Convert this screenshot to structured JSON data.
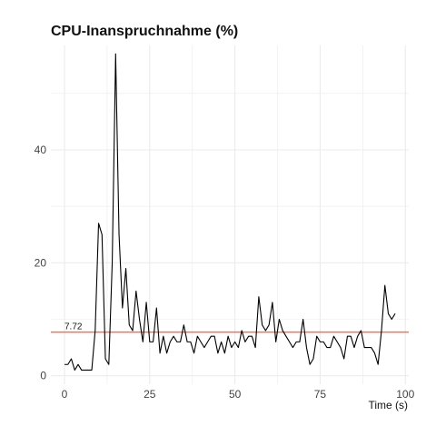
{
  "chart_data": {
    "type": "line",
    "title": "CPU-Inanspruchnahme (%)",
    "xlabel": "Time (s)",
    "ylabel": "",
    "xlim": [
      -4,
      101
    ],
    "ylim": [
      -1.5,
      58.5
    ],
    "x_ticks": [
      0,
      25,
      50,
      75,
      100
    ],
    "x_tick_labels": [
      "0",
      "25",
      "50",
      "75",
      "100"
    ],
    "y_ticks": [
      0,
      20,
      40
    ],
    "y_tick_labels": [
      "0",
      "20",
      "40"
    ],
    "grid": true,
    "legend": "none",
    "series": [
      {
        "color": "#000000",
        "x": [
          0,
          1,
          2,
          3,
          4,
          5,
          6,
          7,
          8,
          9,
          10,
          11,
          12,
          13,
          14,
          15,
          16,
          17,
          18,
          19,
          20,
          21,
          22,
          23,
          24,
          25,
          26,
          27,
          28,
          29,
          30,
          31,
          32,
          33,
          34,
          35,
          36,
          37,
          38,
          39,
          40,
          41,
          42,
          43,
          44,
          45,
          46,
          47,
          48,
          49,
          50,
          51,
          52,
          53,
          54,
          55,
          56,
          57,
          58,
          59,
          60,
          61,
          62,
          63,
          64,
          65,
          66,
          67,
          68,
          69,
          70,
          71,
          72,
          73,
          74,
          75,
          76,
          77,
          78,
          79,
          80,
          81,
          82,
          83,
          84,
          85,
          86,
          87,
          88,
          89,
          90,
          91,
          92,
          93,
          94,
          95,
          96,
          97
        ],
        "values": [
          2,
          2,
          3,
          1,
          2,
          1,
          1,
          1,
          1,
          8,
          27,
          25,
          3,
          2,
          20,
          57,
          25,
          12,
          19,
          9,
          8,
          15,
          10,
          6,
          13,
          6,
          6,
          12,
          4,
          7,
          4,
          6,
          7,
          6,
          6,
          9,
          6,
          6,
          4,
          7,
          6,
          5,
          6,
          7,
          7,
          4,
          6,
          4,
          7,
          5,
          6,
          5,
          8,
          6,
          7,
          7,
          5,
          14,
          9,
          8,
          9,
          13,
          6,
          10,
          8,
          7,
          6,
          5,
          6,
          6,
          10,
          5,
          2,
          3,
          7,
          6,
          6,
          5,
          5,
          7,
          6,
          5,
          3,
          7,
          7,
          5,
          7,
          8,
          5,
          5,
          5,
          4,
          2,
          8,
          16,
          11,
          10,
          11
        ]
      }
    ],
    "reference_line": {
      "value": 7.72,
      "label": "7.72",
      "color": "#f0735a"
    },
    "colors": {
      "background": "#ffffff",
      "grid": "#ebebeb",
      "line": "#000000",
      "reference": "#f0735a"
    }
  }
}
